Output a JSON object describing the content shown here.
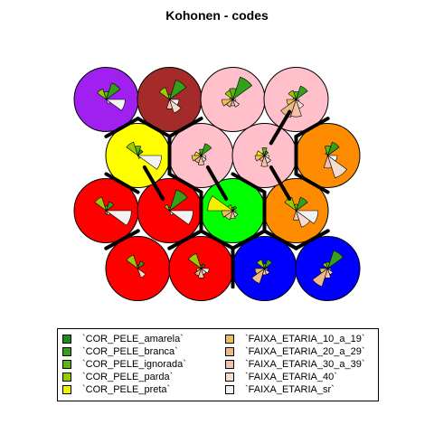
{
  "chart_data": {
    "type": "som-codes",
    "title": "Kohonen - codes",
    "variables": [
      {
        "name": "`COR_PELE_amarela`",
        "color": "#1a8c1a"
      },
      {
        "name": "`COR_PELE_branca`",
        "color": "#33a01a"
      },
      {
        "name": "`COR_PELE_ignorada`",
        "color": "#5db51a"
      },
      {
        "name": "`COR_PELE_parda`",
        "color": "#99cc00"
      },
      {
        "name": "`COR_PELE_preta`",
        "color": "#f2f200"
      },
      {
        "name": "`FAIXA_ETARIA_10_a_19`",
        "color": "#e8bf5a"
      },
      {
        "name": "`FAIXA_ETARIA_20_a_29`",
        "color": "#edb98a"
      },
      {
        "name": "`FAIXA_ETARIA_30_a_39`",
        "color": "#f2c2a8"
      },
      {
        "name": "`FAIXA_ETARIA_40`",
        "color": "#f6dcd0"
      },
      {
        "name": "`FAIXA_ETARIA_sr`",
        "color": "#f2f2f2"
      }
    ],
    "units": [
      {
        "row": 1,
        "col": 1,
        "bg": "#ff0000",
        "codes": [
          0,
          0.25,
          0.1,
          0.45,
          0,
          0,
          0,
          0,
          0.3,
          0
        ]
      },
      {
        "row": 1,
        "col": 2,
        "bg": "#ff0000",
        "codes": [
          0,
          0.15,
          0.1,
          0.5,
          0,
          0.15,
          0.25,
          0.3,
          0.2,
          0.25
        ]
      },
      {
        "row": 1,
        "col": 3,
        "bg": "#0000ff",
        "codes": [
          0,
          0.3,
          0.15,
          0.3,
          0,
          0.3,
          0.5,
          0.2,
          0.2,
          0.1
        ]
      },
      {
        "row": 1,
        "col": 4,
        "bg": "#0000ff",
        "codes": [
          0,
          0.6,
          0.2,
          0.2,
          0,
          0.25,
          0.6,
          0.3,
          0.2,
          0.1
        ]
      },
      {
        "row": 2,
        "col": 1,
        "bg": "#ff0000",
        "codes": [
          0,
          0.3,
          0.15,
          0.45,
          0,
          0,
          0,
          0.1,
          0.15,
          0.8
        ]
      },
      {
        "row": 2,
        "col": 2,
        "bg": "#ff0000",
        "codes": [
          0,
          0.7,
          0.1,
          0.2,
          0,
          0,
          0,
          0,
          0.15,
          0.75
        ]
      },
      {
        "row": 2,
        "col": 3,
        "bg": "#00ff00",
        "codes": [
          0,
          0.15,
          0.1,
          0.2,
          0.8,
          0.35,
          0.3,
          0.25,
          0.2,
          0.1
        ]
      },
      {
        "row": 2,
        "col": 4,
        "bg": "#ff8c00",
        "codes": [
          0,
          0.45,
          0.2,
          0.45,
          0,
          0,
          0,
          0.3,
          0.55,
          0.7
        ]
      },
      {
        "row": 3,
        "col": 1,
        "bg": "#ffff00",
        "codes": [
          0,
          0.2,
          0.3,
          0.45,
          0,
          0,
          0,
          0,
          0.1,
          0.75
        ]
      },
      {
        "row": 3,
        "col": 2,
        "bg": "#ffc0cb",
        "codes": [
          0,
          0.4,
          0.2,
          0.1,
          0.2,
          0.3,
          0.25,
          0.3,
          0.2,
          0.15
        ]
      },
      {
        "row": 3,
        "col": 3,
        "bg": "#ffc0cb",
        "codes": [
          0,
          0.15,
          0.25,
          0.1,
          0.25,
          0.3,
          0.2,
          0.35,
          0.25,
          0.15
        ]
      },
      {
        "row": 3,
        "col": 4,
        "bg": "#ff8c00",
        "codes": [
          0,
          0.45,
          0.3,
          0.1,
          0,
          0,
          0,
          0.4,
          0.75,
          0.3
        ]
      },
      {
        "row": 4,
        "col": 1,
        "bg": "#a020f0",
        "codes": [
          0,
          0.55,
          0.25,
          0.35,
          0,
          0,
          0,
          0,
          0.15,
          0.6
        ]
      },
      {
        "row": 4,
        "col": 2,
        "bg": "#a52a2a",
        "codes": [
          0,
          0.65,
          0.15,
          0.4,
          0,
          0,
          0,
          0.3,
          0.45,
          0.3
        ]
      },
      {
        "row": 4,
        "col": 3,
        "bg": "#ffc0cb",
        "codes": [
          0,
          0.75,
          0.35,
          0.3,
          0.1,
          0.35,
          0.25,
          0.2,
          0.25,
          0.1
        ]
      },
      {
        "row": 4,
        "col": 4,
        "bg": "#ffc0cb",
        "codes": [
          0,
          0.45,
          0.25,
          0.3,
          0.1,
          0.3,
          0.6,
          0.55,
          0.3,
          0.1
        ]
      }
    ],
    "grid": {
      "xdim": 4,
      "ydim": 4,
      "topology": "hexagonal"
    },
    "cluster_boundaries": [
      [
        [
          1,
          1
        ],
        [
          2,
          1
        ]
      ],
      [
        [
          1,
          2
        ],
        [
          2,
          2
        ]
      ],
      [
        [
          1,
          2
        ],
        [
          1,
          3
        ]
      ],
      [
        [
          1,
          2
        ],
        [
          2,
          3
        ]
      ],
      [
        [
          1,
          3
        ],
        [
          2,
          3
        ]
      ],
      [
        [
          1,
          3
        ],
        [
          2,
          4
        ]
      ],
      [
        [
          1,
          4
        ],
        [
          2,
          4
        ]
      ],
      [
        [
          2,
          1
        ],
        [
          3,
          1
        ]
      ],
      [
        [
          2,
          1
        ],
        [
          3,
          2
        ]
      ],
      [
        [
          2,
          2
        ],
        [
          3,
          2
        ]
      ],
      [
        [
          2,
          2
        ],
        [
          2,
          3
        ]
      ],
      [
        [
          2,
          2
        ],
        [
          3,
          3
        ]
      ],
      [
        [
          2,
          3
        ],
        [
          3,
          3
        ]
      ],
      [
        [
          2,
          3
        ],
        [
          3,
          4
        ]
      ],
      [
        [
          2,
          3
        ],
        [
          2,
          4
        ]
      ],
      [
        [
          2,
          4
        ],
        [
          3,
          4
        ]
      ],
      [
        [
          3,
          1
        ],
        [
          3,
          2
        ]
      ],
      [
        [
          3,
          1
        ],
        [
          4,
          1
        ]
      ],
      [
        [
          3,
          1
        ],
        [
          4,
          2
        ]
      ],
      [
        [
          3,
          2
        ],
        [
          4,
          2
        ]
      ],
      [
        [
          3,
          3
        ],
        [
          3,
          4
        ]
      ],
      [
        [
          3,
          4
        ],
        [
          4,
          4
        ]
      ],
      [
        [
          3,
          4
        ],
        [
          4,
          3
        ]
      ]
    ],
    "legend_position": "bottom"
  }
}
